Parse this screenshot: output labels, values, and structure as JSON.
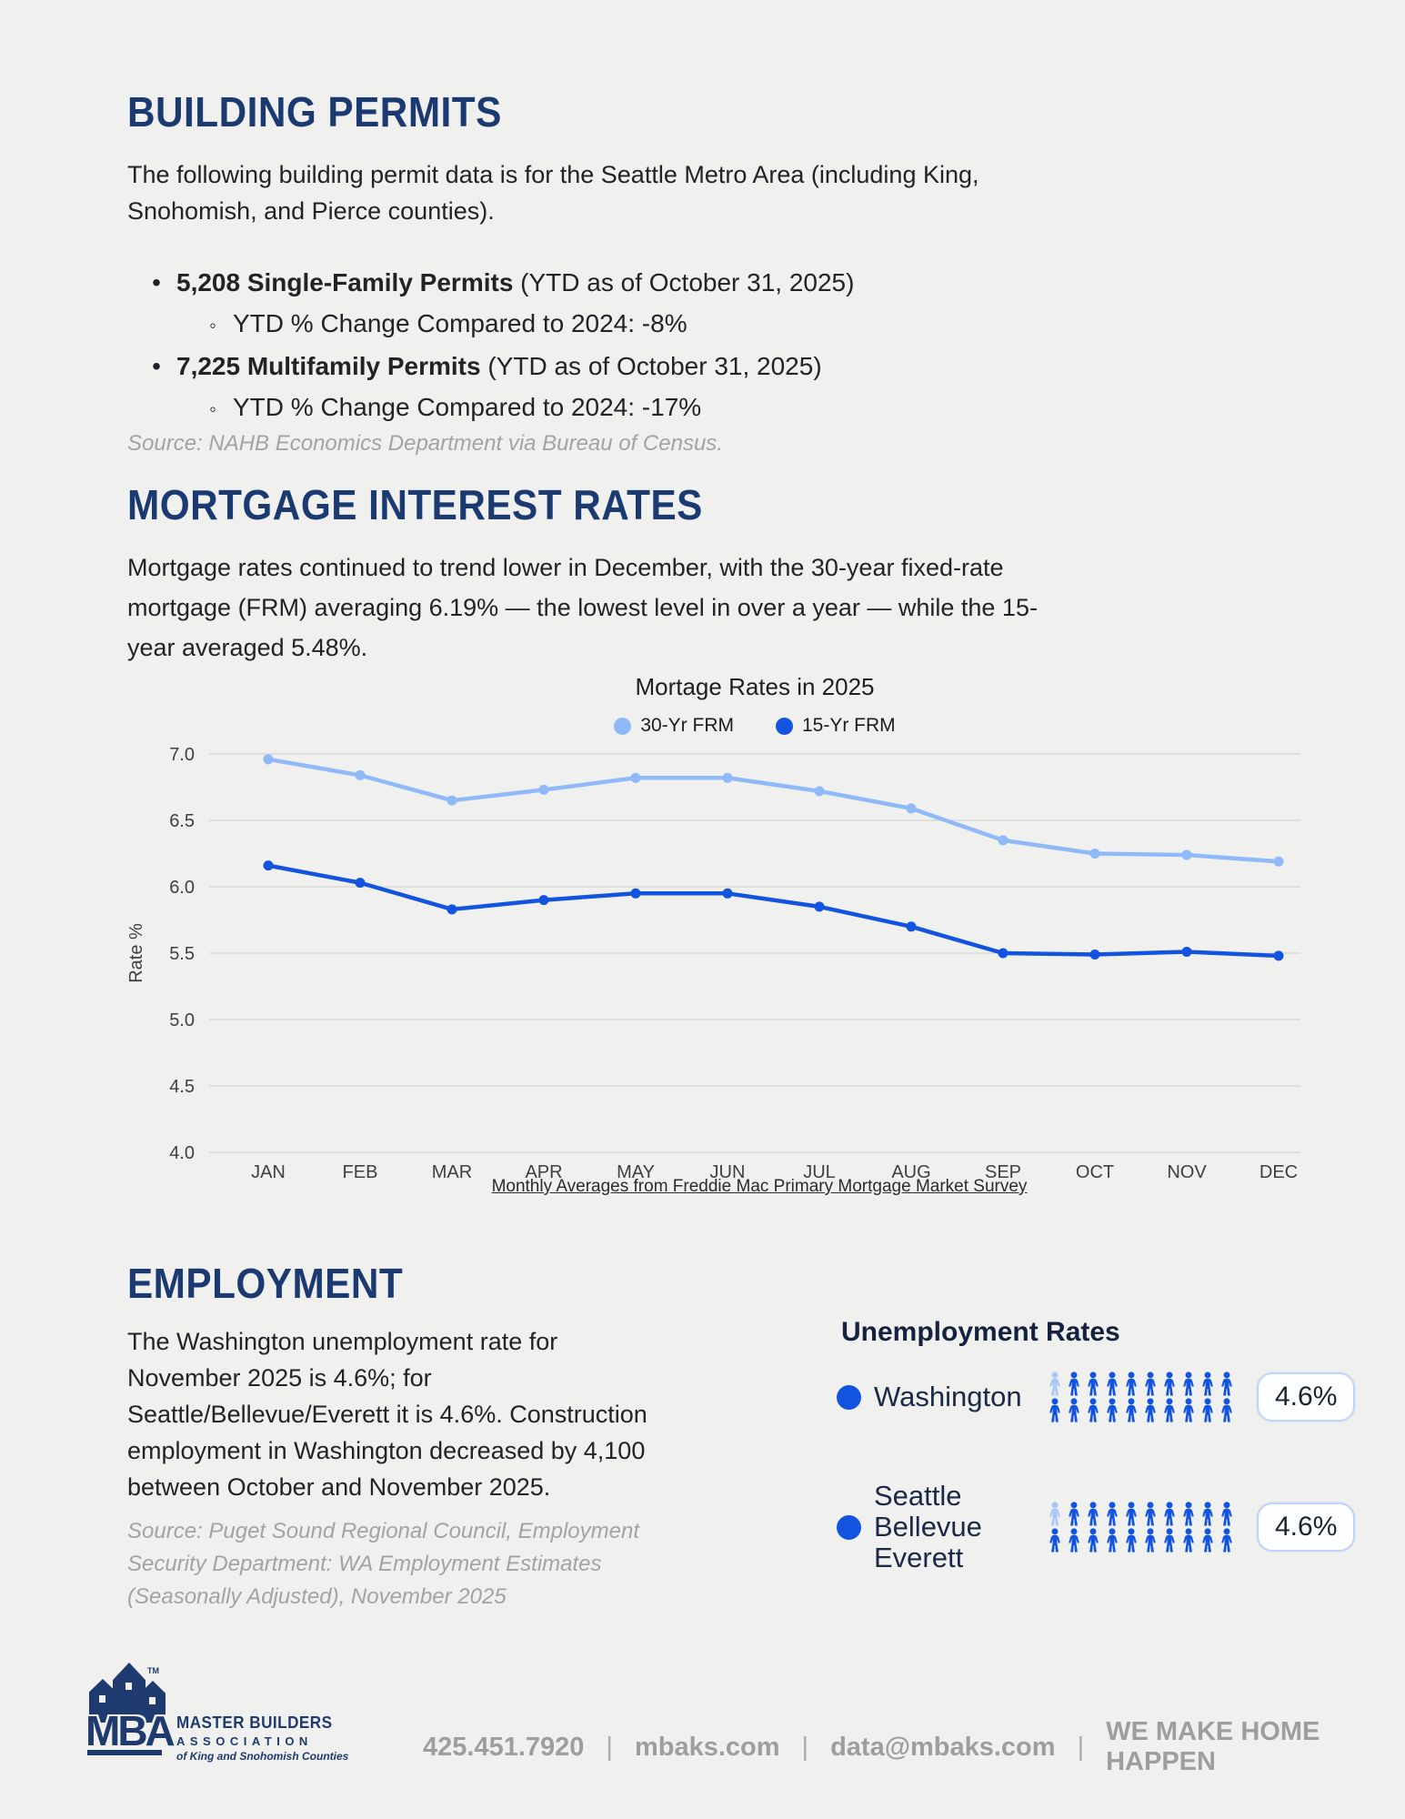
{
  "building_permits": {
    "title": "BUILDING PERMITS",
    "intro": "The following building permit data is for the Seattle Metro Area (including King, Snohomish, and Pierce counties).",
    "bullets": [
      {
        "bold": "5,208 Single-Family Permits",
        "rest": " (YTD as of October 31, 2025)",
        "sub": "YTD % Change Compared to 2024: -8%"
      },
      {
        "bold": "7,225 Multifamily Permits",
        "rest": " (YTD as of October 31, 2025)",
        "sub": "YTD % Change Compared to 2024: -17%"
      }
    ],
    "source": "Source: NAHB Economics Department via Bureau of Census."
  },
  "mortgage": {
    "title": "MORTGAGE INTEREST RATES",
    "intro": "Mortgage rates continued to trend lower in December, with the 30-year fixed-rate mortgage (FRM) averaging 6.19% — the lowest level in over a year — while the 15-year averaged 5.48%.",
    "footnote": "Monthly Averages from Freddie Mac Primary Mortgage Market Survey"
  },
  "chart_data": {
    "type": "line",
    "title": "Mortage Rates in 2025",
    "ylabel": "Rate %",
    "xlabel": "",
    "categories": [
      "JAN",
      "FEB",
      "MAR",
      "APR",
      "MAY",
      "JUN",
      "JUL",
      "AUG",
      "SEP",
      "OCT",
      "NOV",
      "DEC"
    ],
    "series": [
      {
        "name": "30-Yr FRM",
        "color": "#8fb9f8",
        "values": [
          6.96,
          6.84,
          6.65,
          6.73,
          6.82,
          6.82,
          6.72,
          6.59,
          6.35,
          6.25,
          6.24,
          6.19
        ]
      },
      {
        "name": "15-Yr FRM",
        "color": "#1254df",
        "values": [
          6.16,
          6.03,
          5.83,
          5.9,
          5.95,
          5.95,
          5.85,
          5.7,
          5.5,
          5.49,
          5.51,
          5.48
        ]
      }
    ],
    "ylim": [
      4.0,
      7.0
    ],
    "ytick_step": 0.5,
    "grid": true,
    "legend_position": "top",
    "tick_color": "#3f3f3f",
    "grid_color": "#d9d9d9"
  },
  "employment": {
    "title": "EMPLOYMENT",
    "body": "The Washington unemployment rate for November 2025 is 4.6%; for Seattle/Bellevue/Everett it is 4.6%. Construction employment in Washington decreased by 4,100 between October and November 2025.",
    "source": "Source: Puget Sound Regional Council, Employment Security Department: WA Employment Estimates (Seasonally Adjusted), November 2025",
    "rates_heading": "Unemployment Rates",
    "rows": [
      {
        "label_lines": [
          "Washington"
        ],
        "value": "4.6%",
        "icons_total": 20,
        "icons_highlighted": 1
      },
      {
        "label_lines": [
          "Seattle",
          "Bellevue",
          "Everett"
        ],
        "value": "4.6%",
        "icons_total": 20,
        "icons_highlighted": 1
      }
    ],
    "icon_colors": {
      "dark": "#1254df",
      "light": "#a9c8f7"
    }
  },
  "footer": {
    "logo": {
      "mba": "MBA",
      "tm": "TM",
      "line1": "MASTER BUILDERS",
      "line2": "ASSOCIATION",
      "line3": "of King and Snohomish Counties"
    },
    "items": [
      "425.451.7920",
      "mbaks.com",
      "data@mbaks.com",
      "WE MAKE HOME HAPPEN"
    ],
    "separator": "|"
  }
}
